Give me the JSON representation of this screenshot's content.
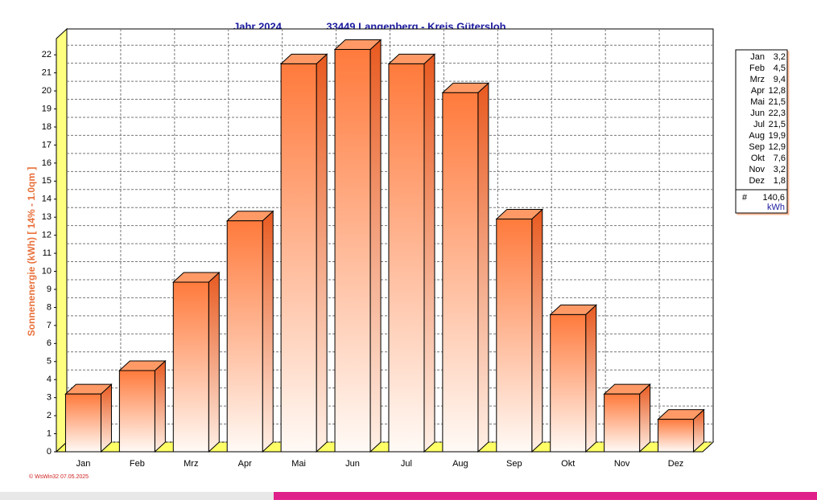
{
  "chart_data": {
    "type": "bar3d",
    "title": "Jahr  2024",
    "subtitle": "33449 Langenberg - Kreis Gütersloh",
    "y_label": "Sonnenenergie  (kWh)    [ 14% - 1.0qm ]",
    "footer": "© WsWin32  07.05.2025",
    "categories": [
      "Jan",
      "Feb",
      "Mrz",
      "Apr",
      "Mai",
      "Jun",
      "Jul",
      "Aug",
      "Sep",
      "Okt",
      "Nov",
      "Dez"
    ],
    "values": [
      3.2,
      4.5,
      9.4,
      12.8,
      21.5,
      22.3,
      21.5,
      19.9,
      12.9,
      7.6,
      3.2,
      1.8
    ],
    "value_labels": [
      "3,2",
      "4,5",
      "9,4",
      "12,8",
      "21,5",
      "22,3",
      "21,5",
      "19,9",
      "12,9",
      "7,6",
      "3,2",
      "1,8"
    ],
    "legend_total": {
      "symbol": "#",
      "value": "140,6",
      "unit": "kWh"
    },
    "color": "#ff7a3c",
    "ylim": [
      0,
      22.9
    ],
    "yticks": [
      0,
      1,
      2,
      3,
      4,
      5,
      6,
      7,
      8,
      9,
      10,
      11,
      12,
      13,
      14,
      15,
      16,
      17,
      18,
      19,
      20,
      21,
      22
    ],
    "grid": true
  }
}
